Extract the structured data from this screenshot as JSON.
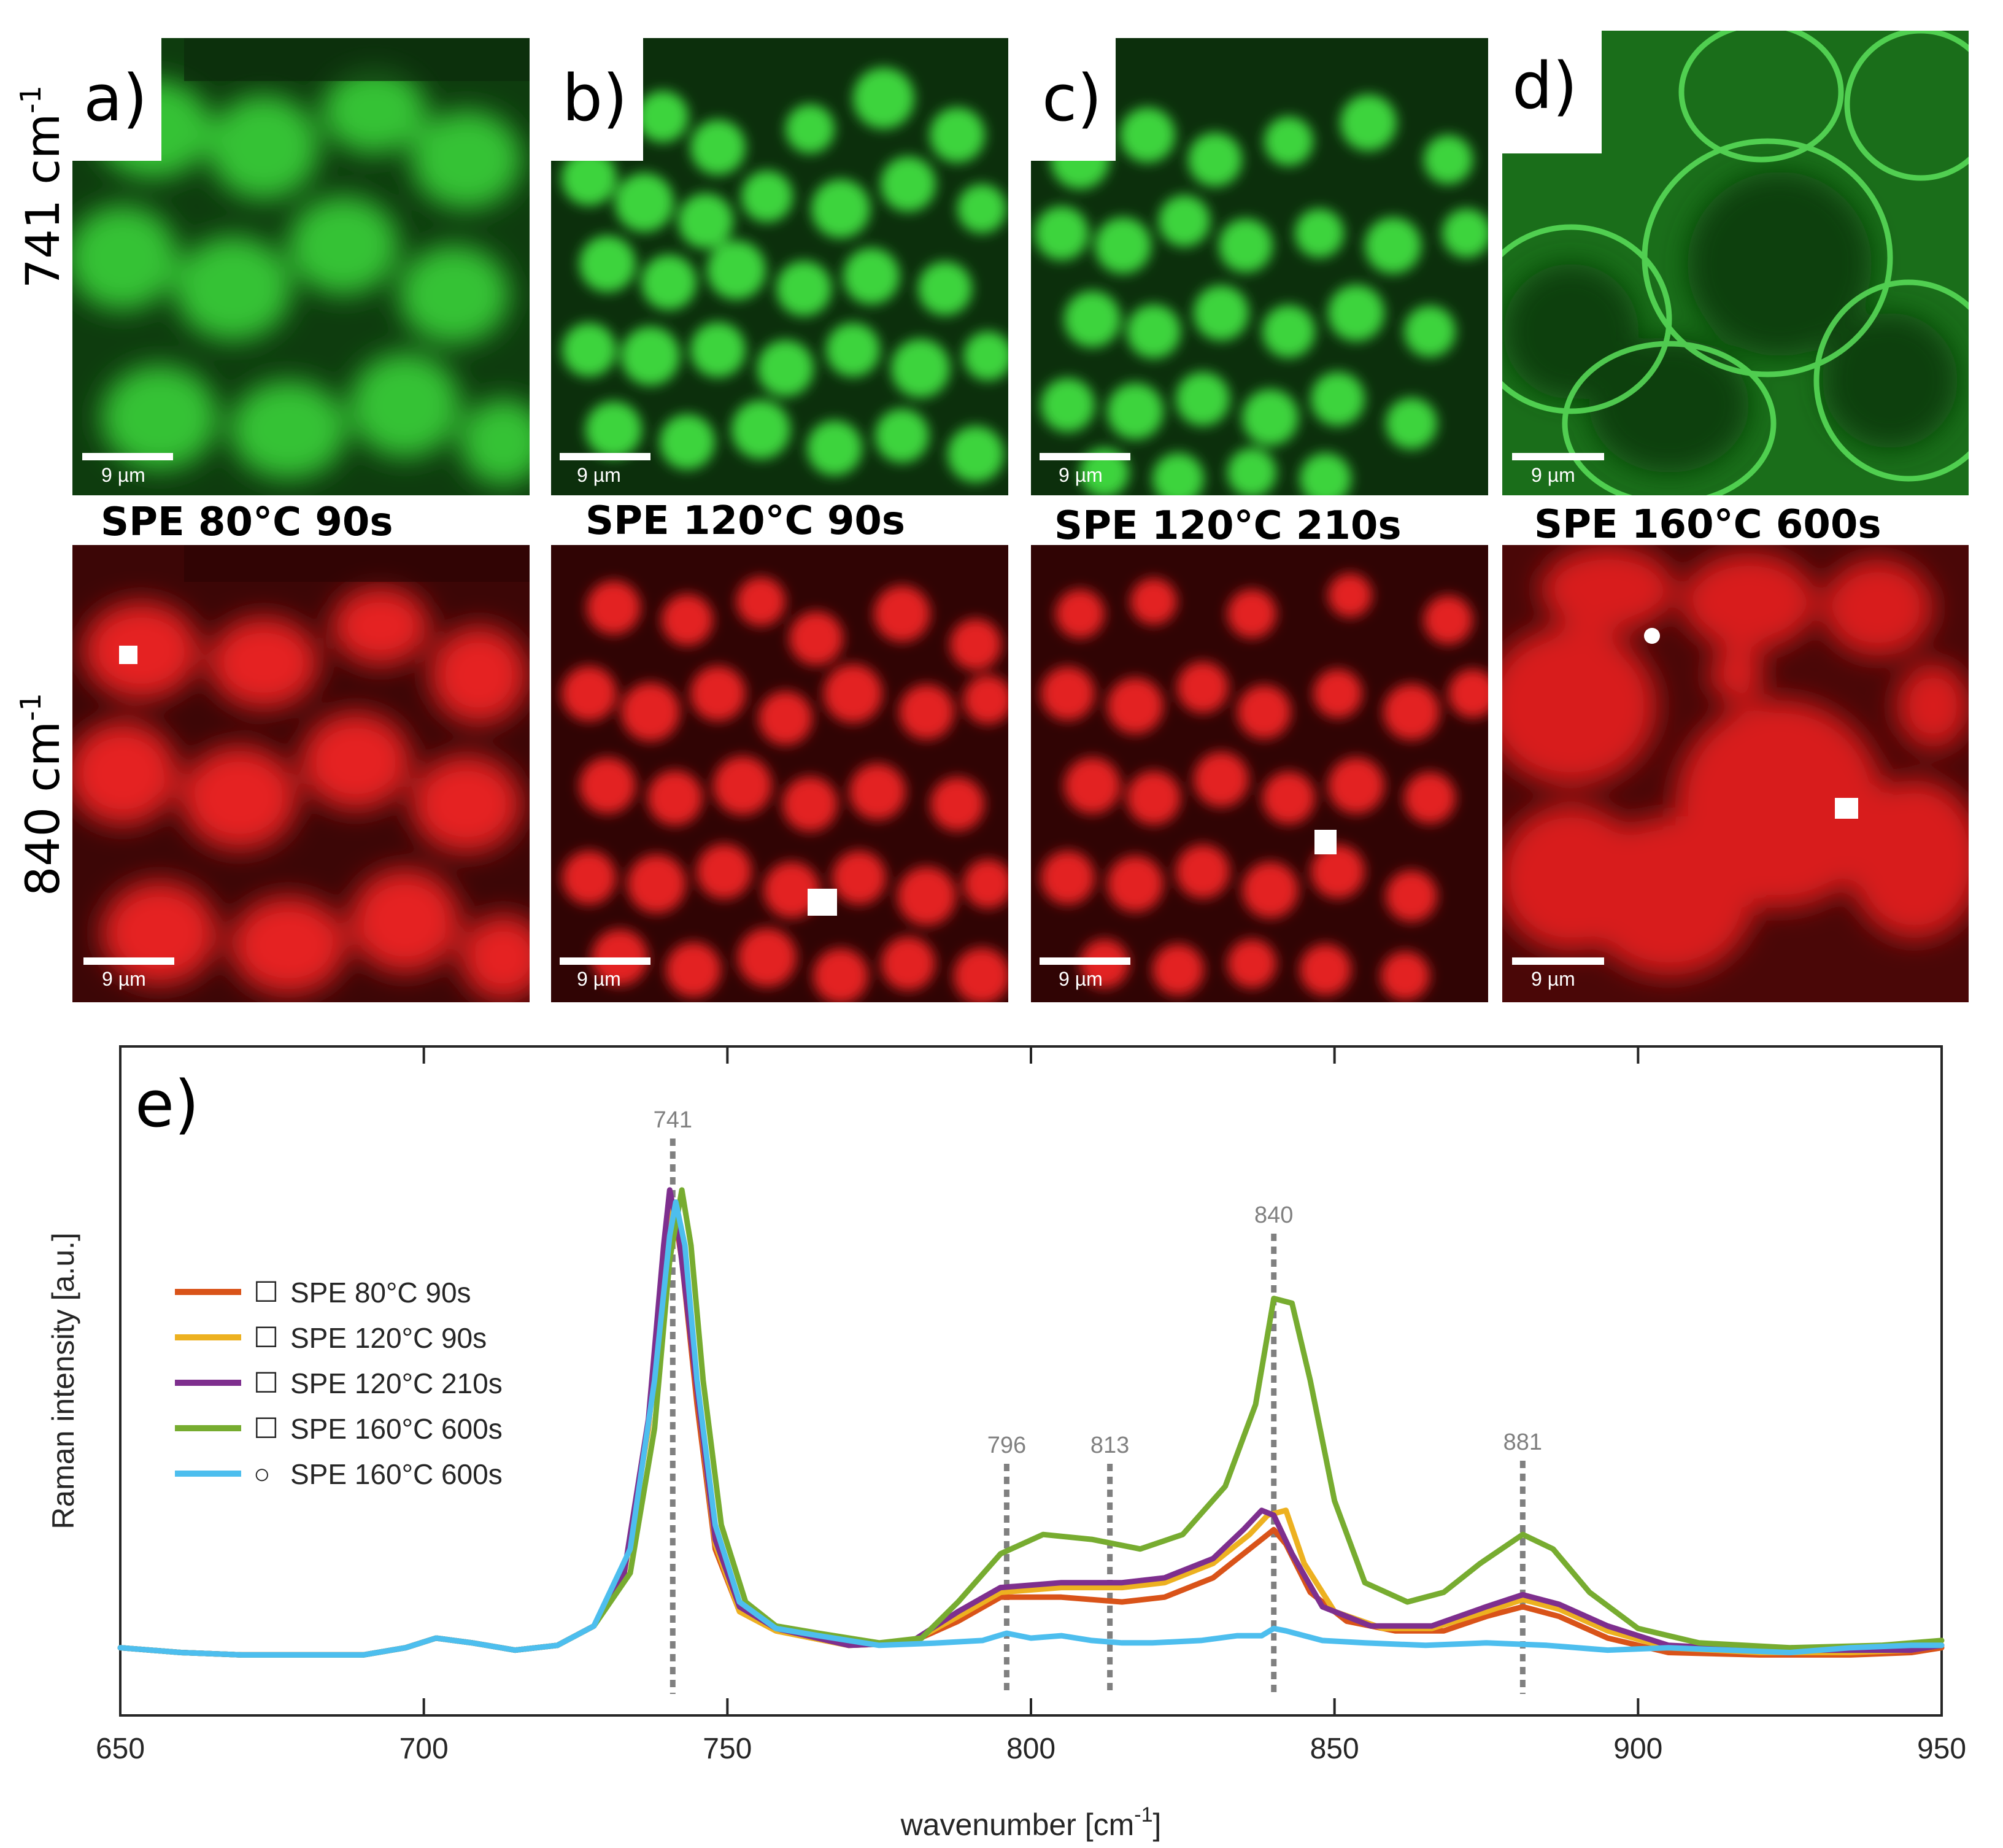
{
  "colors": {
    "green_map": "#2fc02f",
    "red_map": "#e01818",
    "spectrum_80_90": "#d95319",
    "spectrum_120_90": "#edb120",
    "spectrum_120_210": "#7e2f8e",
    "spectrum_160_600": "#77ac30",
    "spectrum_160_600_circle": "#4dbeee",
    "guide": "#808080"
  },
  "rows": {
    "top_label_main": "741 cm",
    "top_label_sup": "-1",
    "bottom_label_main": "840 cm",
    "bottom_label_sup": "-1"
  },
  "panels": [
    {
      "letter": "a)",
      "title": "SPE 80°C 90s",
      "scale_top": "9 µm",
      "scale_bottom": "9 µm",
      "marker_shape": "square"
    },
    {
      "letter": "b)",
      "title": "SPE 120°C 90s",
      "scale_top": "9 µm",
      "scale_bottom": "9 µm",
      "marker_shape": "square"
    },
    {
      "letter": "c)",
      "title": "SPE 120°C 210s",
      "scale_top": "9 µm",
      "scale_bottom": "9 µm",
      "marker_shape": "square"
    },
    {
      "letter": "d)",
      "title": "SPE 160°C 600s",
      "scale_top": "9 µm",
      "scale_bottom": "9 µm",
      "marker_shape": "square+circle"
    }
  ],
  "chart_data": {
    "type": "line",
    "panel_label": "e)",
    "title": "",
    "xlabel_main": "wavenumber [cm",
    "xlabel_sup": "-1",
    "xlabel_close": "]",
    "ylabel": "Raman intensity [a.u.]",
    "xlim": [
      650,
      950
    ],
    "ylim": [
      0,
      1.1
    ],
    "xticks": [
      "650",
      "700",
      "750",
      "800",
      "850",
      "900",
      "950"
    ],
    "legend_position": "left",
    "grid": false,
    "reference_lines": [
      {
        "x": 741,
        "label": "741"
      },
      {
        "x": 796,
        "label": "796"
      },
      {
        "x": 813,
        "label": "813"
      },
      {
        "x": 840,
        "label": "840"
      },
      {
        "x": 881,
        "label": "881"
      }
    ],
    "series": [
      {
        "name": "SPE 80°C 90s",
        "marker": "☐",
        "color_key": "spectrum_80_90",
        "points": [
          [
            650,
            0.045
          ],
          [
            660,
            0.035
          ],
          [
            670,
            0.03
          ],
          [
            690,
            0.03
          ],
          [
            697,
            0.045
          ],
          [
            702,
            0.065
          ],
          [
            708,
            0.055
          ],
          [
            715,
            0.04
          ],
          [
            722,
            0.05
          ],
          [
            728,
            0.09
          ],
          [
            733,
            0.2
          ],
          [
            737,
            0.5
          ],
          [
            739.5,
            0.85
          ],
          [
            741,
            0.97
          ],
          [
            742.5,
            0.85
          ],
          [
            745,
            0.55
          ],
          [
            748,
            0.25
          ],
          [
            752,
            0.12
          ],
          [
            758,
            0.08
          ],
          [
            770,
            0.05
          ],
          [
            780,
            0.055
          ],
          [
            788,
            0.1
          ],
          [
            795,
            0.15
          ],
          [
            805,
            0.15
          ],
          [
            815,
            0.14
          ],
          [
            822,
            0.15
          ],
          [
            830,
            0.19
          ],
          [
            835,
            0.24
          ],
          [
            838,
            0.27
          ],
          [
            840,
            0.29
          ],
          [
            842,
            0.26
          ],
          [
            846,
            0.16
          ],
          [
            852,
            0.1
          ],
          [
            860,
            0.08
          ],
          [
            868,
            0.08
          ],
          [
            875,
            0.11
          ],
          [
            881,
            0.13
          ],
          [
            887,
            0.11
          ],
          [
            895,
            0.065
          ],
          [
            905,
            0.035
          ],
          [
            920,
            0.03
          ],
          [
            935,
            0.03
          ],
          [
            945,
            0.035
          ],
          [
            950,
            0.045
          ]
        ]
      },
      {
        "name": "SPE 120°C 90s",
        "marker": "☐",
        "color_key": "spectrum_120_90",
        "points": [
          [
            650,
            0.045
          ],
          [
            660,
            0.035
          ],
          [
            670,
            0.03
          ],
          [
            690,
            0.03
          ],
          [
            697,
            0.045
          ],
          [
            702,
            0.065
          ],
          [
            708,
            0.055
          ],
          [
            715,
            0.04
          ],
          [
            722,
            0.05
          ],
          [
            728,
            0.09
          ],
          [
            733,
            0.2
          ],
          [
            737,
            0.5
          ],
          [
            739.5,
            0.85
          ],
          [
            741,
            0.97
          ],
          [
            742.5,
            0.87
          ],
          [
            745,
            0.58
          ],
          [
            748,
            0.26
          ],
          [
            752,
            0.12
          ],
          [
            758,
            0.08
          ],
          [
            770,
            0.05
          ],
          [
            780,
            0.055
          ],
          [
            788,
            0.11
          ],
          [
            795,
            0.16
          ],
          [
            805,
            0.17
          ],
          [
            815,
            0.17
          ],
          [
            822,
            0.18
          ],
          [
            830,
            0.22
          ],
          [
            836,
            0.28
          ],
          [
            839,
            0.32
          ],
          [
            842,
            0.33
          ],
          [
            845,
            0.22
          ],
          [
            850,
            0.12
          ],
          [
            858,
            0.085
          ],
          [
            866,
            0.085
          ],
          [
            875,
            0.12
          ],
          [
            881,
            0.145
          ],
          [
            887,
            0.125
          ],
          [
            895,
            0.08
          ],
          [
            905,
            0.045
          ],
          [
            920,
            0.035
          ],
          [
            935,
            0.035
          ],
          [
            945,
            0.04
          ],
          [
            950,
            0.05
          ]
        ]
      },
      {
        "name": "SPE 120°C 210s",
        "marker": "☐",
        "color_key": "spectrum_120_210",
        "points": [
          [
            650,
            0.045
          ],
          [
            660,
            0.035
          ],
          [
            670,
            0.03
          ],
          [
            690,
            0.03
          ],
          [
            697,
            0.045
          ],
          [
            702,
            0.065
          ],
          [
            708,
            0.055
          ],
          [
            715,
            0.04
          ],
          [
            722,
            0.05
          ],
          [
            728,
            0.09
          ],
          [
            733,
            0.2
          ],
          [
            737,
            0.52
          ],
          [
            739.5,
            0.88
          ],
          [
            740.5,
            0.995
          ],
          [
            742,
            0.9
          ],
          [
            745,
            0.58
          ],
          [
            748,
            0.27
          ],
          [
            752,
            0.13
          ],
          [
            758,
            0.085
          ],
          [
            770,
            0.05
          ],
          [
            780,
            0.055
          ],
          [
            788,
            0.12
          ],
          [
            795,
            0.17
          ],
          [
            805,
            0.18
          ],
          [
            815,
            0.18
          ],
          [
            822,
            0.19
          ],
          [
            830,
            0.23
          ],
          [
            835,
            0.29
          ],
          [
            838,
            0.33
          ],
          [
            840,
            0.32
          ],
          [
            843,
            0.24
          ],
          [
            848,
            0.13
          ],
          [
            856,
            0.09
          ],
          [
            866,
            0.09
          ],
          [
            875,
            0.13
          ],
          [
            881,
            0.155
          ],
          [
            887,
            0.135
          ],
          [
            895,
            0.09
          ],
          [
            905,
            0.05
          ],
          [
            920,
            0.04
          ],
          [
            935,
            0.04
          ],
          [
            945,
            0.04
          ],
          [
            950,
            0.05
          ]
        ]
      },
      {
        "name": "SPE 160°C 600s",
        "marker": "☐",
        "color_key": "spectrum_160_600",
        "points": [
          [
            650,
            0.045
          ],
          [
            660,
            0.035
          ],
          [
            670,
            0.03
          ],
          [
            690,
            0.03
          ],
          [
            697,
            0.045
          ],
          [
            702,
            0.065
          ],
          [
            708,
            0.055
          ],
          [
            715,
            0.04
          ],
          [
            722,
            0.05
          ],
          [
            728,
            0.09
          ],
          [
            734,
            0.2
          ],
          [
            738,
            0.5
          ],
          [
            740.5,
            0.85
          ],
          [
            742.5,
            0.995
          ],
          [
            744,
            0.88
          ],
          [
            746,
            0.6
          ],
          [
            749,
            0.3
          ],
          [
            753,
            0.14
          ],
          [
            758,
            0.09
          ],
          [
            765,
            0.075
          ],
          [
            775,
            0.055
          ],
          [
            782,
            0.065
          ],
          [
            788,
            0.14
          ],
          [
            795,
            0.24
          ],
          [
            802,
            0.28
          ],
          [
            810,
            0.27
          ],
          [
            818,
            0.25
          ],
          [
            825,
            0.28
          ],
          [
            832,
            0.38
          ],
          [
            837,
            0.55
          ],
          [
            840,
            0.77
          ],
          [
            843,
            0.76
          ],
          [
            846,
            0.6
          ],
          [
            850,
            0.35
          ],
          [
            855,
            0.18
          ],
          [
            862,
            0.14
          ],
          [
            868,
            0.16
          ],
          [
            874,
            0.22
          ],
          [
            881,
            0.28
          ],
          [
            886,
            0.25
          ],
          [
            892,
            0.16
          ],
          [
            900,
            0.085
          ],
          [
            910,
            0.055
          ],
          [
            925,
            0.045
          ],
          [
            940,
            0.05
          ],
          [
            950,
            0.06
          ]
        ]
      },
      {
        "name": "SPE 160°C 600s",
        "marker": "○",
        "color_key": "spectrum_160_600_circle",
        "points": [
          [
            650,
            0.045
          ],
          [
            660,
            0.035
          ],
          [
            670,
            0.03
          ],
          [
            690,
            0.03
          ],
          [
            697,
            0.045
          ],
          [
            702,
            0.065
          ],
          [
            708,
            0.055
          ],
          [
            715,
            0.04
          ],
          [
            722,
            0.05
          ],
          [
            728,
            0.09
          ],
          [
            734,
            0.25
          ],
          [
            738,
            0.6
          ],
          [
            740.5,
            0.9
          ],
          [
            741.5,
            0.97
          ],
          [
            743,
            0.88
          ],
          [
            745,
            0.6
          ],
          [
            748,
            0.3
          ],
          [
            752,
            0.14
          ],
          [
            758,
            0.085
          ],
          [
            765,
            0.07
          ],
          [
            775,
            0.05
          ],
          [
            785,
            0.055
          ],
          [
            792,
            0.06
          ],
          [
            796,
            0.075
          ],
          [
            800,
            0.065
          ],
          [
            805,
            0.07
          ],
          [
            810,
            0.06
          ],
          [
            815,
            0.055
          ],
          [
            820,
            0.055
          ],
          [
            828,
            0.06
          ],
          [
            834,
            0.07
          ],
          [
            838,
            0.07
          ],
          [
            840,
            0.085
          ],
          [
            842,
            0.08
          ],
          [
            848,
            0.06
          ],
          [
            855,
            0.055
          ],
          [
            865,
            0.05
          ],
          [
            875,
            0.055
          ],
          [
            885,
            0.05
          ],
          [
            895,
            0.04
          ],
          [
            905,
            0.045
          ],
          [
            915,
            0.04
          ],
          [
            925,
            0.035
          ],
          [
            935,
            0.045
          ],
          [
            945,
            0.05
          ],
          [
            950,
            0.05
          ]
        ]
      }
    ]
  }
}
